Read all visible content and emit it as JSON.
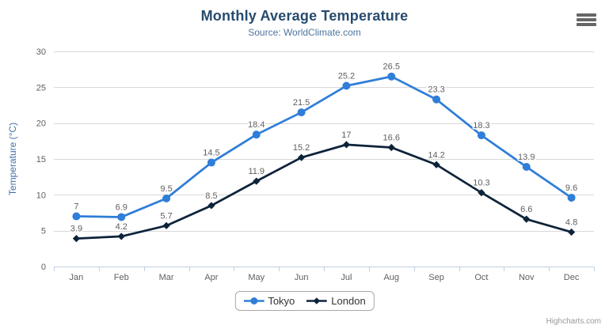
{
  "header": {
    "title": "Monthly Average Temperature",
    "subtitle": "Source: WorldClimate.com"
  },
  "chart_data": {
    "type": "line",
    "title": "Monthly Average Temperature",
    "subtitle": "Source: WorldClimate.com",
    "categories": [
      "Jan",
      "Feb",
      "Mar",
      "Apr",
      "May",
      "Jun",
      "Jul",
      "Aug",
      "Sep",
      "Oct",
      "Nov",
      "Dec"
    ],
    "series": [
      {
        "name": "Tokyo",
        "color": "#2f7ed8",
        "marker": "circle",
        "values": [
          7,
          6.9,
          9.5,
          14.5,
          18.4,
          21.5,
          25.2,
          26.5,
          23.3,
          18.3,
          13.9,
          9.6
        ]
      },
      {
        "name": "London",
        "color": "#0d233a",
        "marker": "diamond",
        "values": [
          3.9,
          4.2,
          5.7,
          8.5,
          11.9,
          15.2,
          17,
          16.6,
          14.2,
          10.3,
          6.6,
          4.8
        ]
      }
    ],
    "xlabel": "",
    "ylabel": "Temperature (°C)",
    "ylim": [
      0,
      30
    ],
    "yticks": [
      0,
      5,
      10,
      15,
      20,
      25,
      30
    ],
    "grid": true,
    "legend_position": "bottom",
    "data_labels": true
  },
  "legend": {
    "items": [
      "Tokyo",
      "London"
    ]
  },
  "credits": {
    "label": "Highcharts.com"
  },
  "colors": {
    "title": "#274b6d",
    "subtitle": "#4d759e",
    "axis_label": "#606060",
    "axis_title": "#4572a7",
    "gridline": "#d8d8d8",
    "axis_line": "#c0d0e0",
    "data_label": "#606060",
    "legend_text": "#333333",
    "menu_icon": "#666666",
    "credits": "#999999",
    "background": "#ffffff"
  }
}
